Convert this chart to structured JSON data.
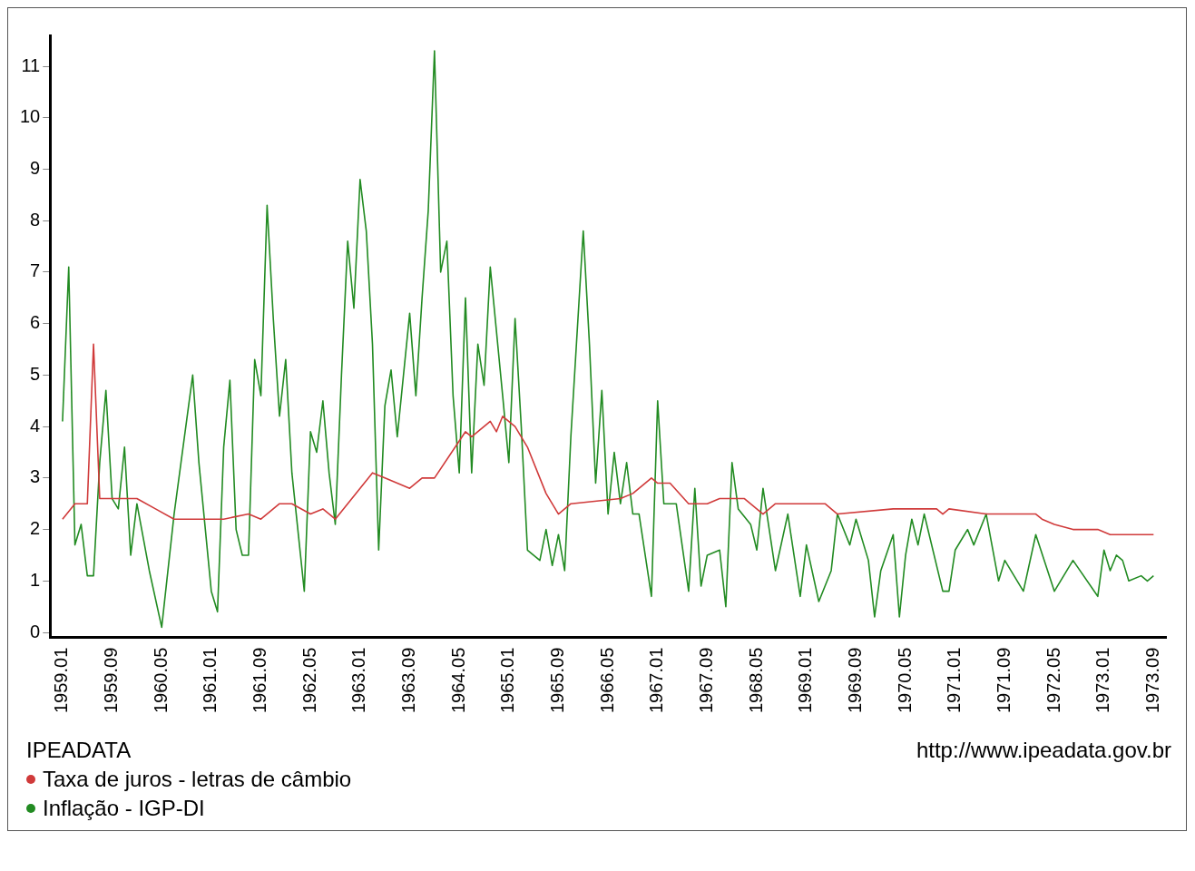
{
  "chart_data": {
    "type": "line",
    "legend": "bottom left",
    "marker": "none",
    "line_style": "solid",
    "grid": false,
    "annotations": [
      "IPEADATA",
      "http://www.ipeadata.gov.br"
    ],
    "xlim": [
      "1958-11",
      "1973-11"
    ],
    "ylim": [
      -0.1,
      11.6
    ],
    "yticks": [
      0,
      1,
      2,
      3,
      4,
      5,
      6,
      7,
      8,
      9,
      10,
      11
    ],
    "xticks": [
      {
        "value": "1959-01",
        "label": "1959.01"
      },
      {
        "value": "1959-09",
        "label": "1959.09"
      },
      {
        "value": "1960-05",
        "label": "1960.05"
      },
      {
        "value": "1961-01",
        "label": "1961.01"
      },
      {
        "value": "1961-09",
        "label": "1961.09"
      },
      {
        "value": "1962-05",
        "label": "1962.05"
      },
      {
        "value": "1963-01",
        "label": "1963.01"
      },
      {
        "value": "1963-09",
        "label": "1963.09"
      },
      {
        "value": "1964-05",
        "label": "1964.05"
      },
      {
        "value": "1965-01",
        "label": "1965.01"
      },
      {
        "value": "1965-09",
        "label": "1965.09"
      },
      {
        "value": "1966-05",
        "label": "1966.05"
      },
      {
        "value": "1967-01",
        "label": "1967.01"
      },
      {
        "value": "1967-09",
        "label": "1967.09"
      },
      {
        "value": "1968-05",
        "label": "1968.05"
      },
      {
        "value": "1969-01",
        "label": "1969.01"
      },
      {
        "value": "1969-09",
        "label": "1969.09"
      },
      {
        "value": "1970-05",
        "label": "1970.05"
      },
      {
        "value": "1971-01",
        "label": "1971.01"
      },
      {
        "value": "1971-09",
        "label": "1971.09"
      },
      {
        "value": "1972-05",
        "label": "1972.05"
      },
      {
        "value": "1973-01",
        "label": "1973.01"
      },
      {
        "value": "1973-09",
        "label": "1973.09"
      }
    ],
    "series": [
      {
        "name": "Taxa de juros - letras de câmbio",
        "color": "#d03a3a",
        "x": [
          "1959-01",
          "1959-03",
          "1959-05",
          "1959-06",
          "1959-07",
          "1960-01",
          "1960-04",
          "1960-07",
          "1961-03",
          "1961-07",
          "1961-09",
          "1961-12",
          "1962-02",
          "1962-05",
          "1962-07",
          "1962-09",
          "1963-03",
          "1963-05",
          "1963-09",
          "1963-11",
          "1964-01",
          "1964-06",
          "1964-07",
          "1964-10",
          "1964-11",
          "1964-12",
          "1965-02",
          "1965-04",
          "1965-07",
          "1965-09",
          "1965-11",
          "1966-07",
          "1966-09",
          "1966-12",
          "1967-01",
          "1967-03",
          "1967-06",
          "1967-09",
          "1967-11",
          "1968-03",
          "1968-06",
          "1968-08",
          "1969-04",
          "1969-06",
          "1970-03",
          "1970-10",
          "1970-11",
          "1970-12",
          "1971-06",
          "1972-02",
          "1972-03",
          "1972-05",
          "1972-08",
          "1972-12",
          "1973-02",
          "1973-09"
        ],
        "values": [
          2.2,
          2.5,
          2.5,
          5.6,
          2.6,
          2.6,
          2.4,
          2.2,
          2.2,
          2.3,
          2.2,
          2.5,
          2.5,
          2.3,
          2.4,
          2.2,
          3.1,
          3.0,
          2.8,
          3.0,
          3.0,
          3.9,
          3.8,
          4.1,
          3.9,
          4.2,
          4.0,
          3.6,
          2.7,
          2.3,
          2.5,
          2.6,
          2.7,
          3.0,
          2.9,
          2.9,
          2.5,
          2.5,
          2.6,
          2.6,
          2.3,
          2.5,
          2.5,
          2.3,
          2.4,
          2.4,
          2.3,
          2.4,
          2.3,
          2.3,
          2.2,
          2.1,
          2.0,
          2.0,
          1.9,
          1.9
        ]
      },
      {
        "name": "Inflação - IGP-DI",
        "color": "#228b22",
        "x": [
          "1959-01",
          "1959-02",
          "1959-03",
          "1959-04",
          "1959-05",
          "1959-06",
          "1959-07",
          "1959-08",
          "1959-09",
          "1959-10",
          "1959-11",
          "1959-12",
          "1960-01",
          "1960-03",
          "1960-05",
          "1960-07",
          "1960-10",
          "1960-11",
          "1961-01",
          "1961-02",
          "1961-03",
          "1961-04",
          "1961-05",
          "1961-06",
          "1961-07",
          "1961-08",
          "1961-09",
          "1961-10",
          "1961-11",
          "1961-12",
          "1962-01",
          "1962-02",
          "1962-04",
          "1962-05",
          "1962-06",
          "1962-07",
          "1962-08",
          "1962-09",
          "1962-10",
          "1962-11",
          "1962-12",
          "1963-01",
          "1963-02",
          "1963-03",
          "1963-04",
          "1963-05",
          "1963-06",
          "1963-07",
          "1963-09",
          "1963-10",
          "1963-11",
          "1963-12",
          "1964-01",
          "1964-02",
          "1964-03",
          "1964-04",
          "1964-05",
          "1964-06",
          "1964-07",
          "1964-08",
          "1964-09",
          "1964-10",
          "1964-12",
          "1965-01",
          "1965-02",
          "1965-03",
          "1965-04",
          "1965-06",
          "1965-07",
          "1965-08",
          "1965-09",
          "1965-10",
          "1965-11",
          "1966-01",
          "1966-02",
          "1966-03",
          "1966-04",
          "1966-05",
          "1966-06",
          "1966-07",
          "1966-08",
          "1966-09",
          "1966-10",
          "1966-12",
          "1967-01",
          "1967-02",
          "1967-04",
          "1967-06",
          "1967-07",
          "1967-08",
          "1967-09",
          "1967-11",
          "1967-12",
          "1968-01",
          "1968-02",
          "1968-04",
          "1968-05",
          "1968-06",
          "1968-08",
          "1968-10",
          "1968-12",
          "1969-01",
          "1969-03",
          "1969-05",
          "1969-06",
          "1969-08",
          "1969-09",
          "1969-11",
          "1969-12",
          "1970-01",
          "1970-03",
          "1970-04",
          "1970-05",
          "1970-06",
          "1970-07",
          "1970-08",
          "1970-11",
          "1970-12",
          "1971-01",
          "1971-03",
          "1971-04",
          "1971-06",
          "1971-08",
          "1971-09",
          "1971-12",
          "1972-02",
          "1972-05",
          "1972-08",
          "1972-12",
          "1973-01",
          "1973-02",
          "1973-03",
          "1973-04",
          "1973-05",
          "1973-07",
          "1973-08",
          "1973-09"
        ],
        "values": [
          4.1,
          7.1,
          1.7,
          2.1,
          1.1,
          1.1,
          3.3,
          4.7,
          2.6,
          2.4,
          3.6,
          1.5,
          2.5,
          1.2,
          0.1,
          2.3,
          5.0,
          3.3,
          0.8,
          0.4,
          3.6,
          4.9,
          2.0,
          1.5,
          1.5,
          5.3,
          4.6,
          8.3,
          6.1,
          4.2,
          5.3,
          3.1,
          0.8,
          3.9,
          3.5,
          4.5,
          3.1,
          2.1,
          5.0,
          7.6,
          6.3,
          8.8,
          7.8,
          5.6,
          1.6,
          4.4,
          5.1,
          3.8,
          6.2,
          4.6,
          6.5,
          8.2,
          11.3,
          7.0,
          7.6,
          4.6,
          3.1,
          6.5,
          3.1,
          5.6,
          4.8,
          7.1,
          4.6,
          3.3,
          6.1,
          4.0,
          1.6,
          1.4,
          2.0,
          1.3,
          1.9,
          1.2,
          3.8,
          7.8,
          5.6,
          2.9,
          4.7,
          2.3,
          3.5,
          2.5,
          3.3,
          2.3,
          2.3,
          0.7,
          4.5,
          2.5,
          2.5,
          0.8,
          2.8,
          0.9,
          1.5,
          1.6,
          0.5,
          3.3,
          2.4,
          2.1,
          1.6,
          2.8,
          1.2,
          2.3,
          0.7,
          1.7,
          0.6,
          1.2,
          2.3,
          1.7,
          2.2,
          1.4,
          0.3,
          1.2,
          1.9,
          0.3,
          1.5,
          2.2,
          1.7,
          2.3,
          0.8,
          0.8,
          1.6,
          2.0,
          1.7,
          2.3,
          1.0,
          1.4,
          0.8,
          1.9,
          0.8,
          1.4,
          0.7,
          1.6,
          1.2,
          1.5,
          1.4,
          1.0,
          1.1,
          1.0,
          1.1
        ]
      }
    ]
  }
}
